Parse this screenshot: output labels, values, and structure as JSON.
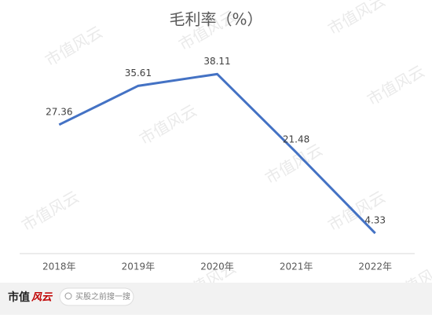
{
  "chart_data": {
    "type": "line",
    "title": "毛利率（%）",
    "categories": [
      "2018年",
      "2019年",
      "2020年",
      "2021年",
      "2022年"
    ],
    "series": [
      {
        "name": "毛利率",
        "color": "#4472c4",
        "values": [
          27.36,
          35.61,
          38.11,
          21.48,
          4.33
        ]
      }
    ]
  },
  "watermark": "市值风云",
  "footer": {
    "brand": "市值",
    "brand_mark": "风云",
    "search": "买股之前搜一搜"
  }
}
